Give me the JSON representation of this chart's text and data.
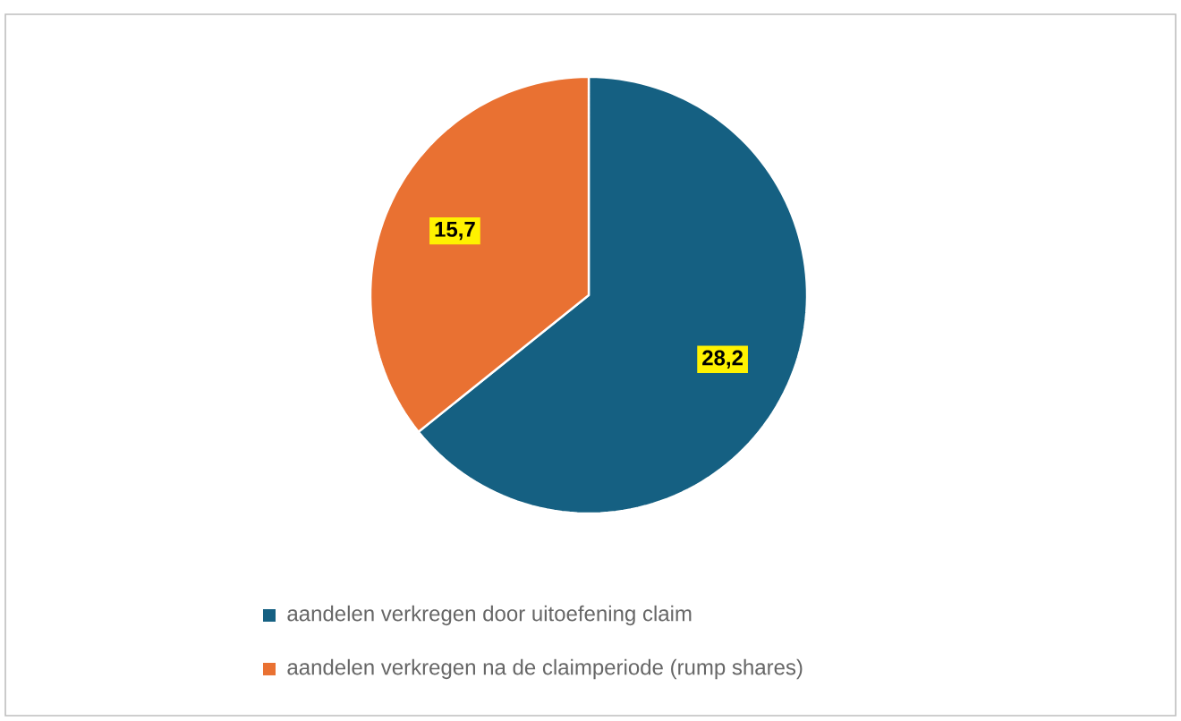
{
  "chart_data": {
    "type": "pie",
    "categories": [
      "aandelen verkregen door uitoefening claim",
      "aandelen verkregen na de claimperiode (rump shares)"
    ],
    "values": [
      28.2,
      15.7
    ],
    "colors": [
      "#156082",
      "#e97132"
    ],
    "value_labels": [
      "28,2",
      "15,7"
    ],
    "legend": "bottom"
  }
}
